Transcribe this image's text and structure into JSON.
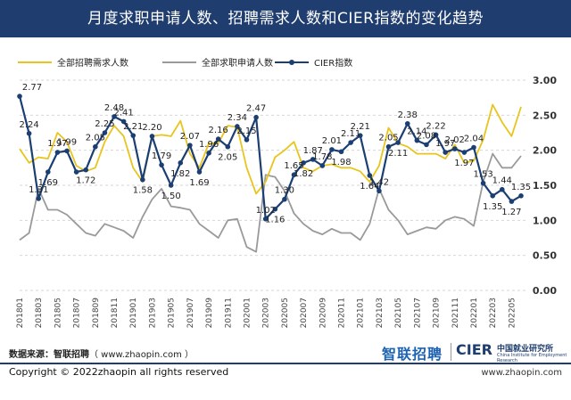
{
  "title": "月度求职申请人数、招聘需求人数和CIER指数的变化趋势",
  "footer": {
    "source_label": "数据来源：智联招聘",
    "source_url": "（ www.zhaopin.com ）",
    "logo_zhaopin": "智联招聘",
    "logo_cier": "CIER",
    "logo_cn": "中国就业研究所",
    "logo_en": "China Institute for Employment Research",
    "copyright": "Copyright ©  2022zhaopin all rights reserved",
    "website": "www.zhaopin.com"
  },
  "colors": {
    "title_bg": "#1f3d6e",
    "demand": "#e8c51e",
    "applicants": "#9a9a9a",
    "cier": "#1b3f73"
  },
  "chart_data": {
    "type": "line",
    "title": "月度求职申请人数、招聘需求人数和CIER指数的变化趋势",
    "legend": [
      "全部招聘需求人数",
      "全部求职申请人数",
      "CIER指数"
    ],
    "y_ticks": [
      "3.00",
      "2.50",
      "2.00",
      "1.50",
      "1.00",
      "0.50",
      "0.00"
    ],
    "ylim": [
      0,
      3
    ],
    "grid": "horizontal dashed",
    "x_tick_labels": [
      "201801",
      "201803",
      "201805",
      "201807",
      "201809",
      "201811",
      "201901",
      "201903",
      "201905",
      "201907",
      "201909",
      "201911",
      "202001",
      "202003",
      "202005",
      "202007",
      "202009",
      "202011",
      "202101",
      "202103",
      "202105",
      "202107",
      "202109",
      "202111",
      "202201",
      "202203",
      "202205"
    ],
    "categories": [
      "201801",
      "201802",
      "201803",
      "201804",
      "201805",
      "201806",
      "201807",
      "201808",
      "201809",
      "201810",
      "201811",
      "201812",
      "201901",
      "201902",
      "201903",
      "201904",
      "201905",
      "201906",
      "201907",
      "201908",
      "201909",
      "201910",
      "201911",
      "201912",
      "202001",
      "202002",
      "202003",
      "202004",
      "202005",
      "202006",
      "202007",
      "202008",
      "202009",
      "202010",
      "202011",
      "202012",
      "202101",
      "202102",
      "202103",
      "202104",
      "202105",
      "202106",
      "202107",
      "202108",
      "202109",
      "202110",
      "202111",
      "202112",
      "202201",
      "202202",
      "202203",
      "202204",
      "202205",
      "202206"
    ],
    "series": [
      {
        "name": "CIER指数",
        "role": "cier",
        "values": [
          2.77,
          2.24,
          1.31,
          1.69,
          1.97,
          1.99,
          1.69,
          1.72,
          2.05,
          2.25,
          2.48,
          2.41,
          2.21,
          1.58,
          2.2,
          1.79,
          1.5,
          1.82,
          2.07,
          1.69,
          1.96,
          2.16,
          2.05,
          2.34,
          2.15,
          2.47,
          1.02,
          1.16,
          1.3,
          1.65,
          1.82,
          1.87,
          1.78,
          2.01,
          1.98,
          2.11,
          2.21,
          1.64,
          1.42,
          2.05,
          2.11,
          2.38,
          2.14,
          2.08,
          2.22,
          1.97,
          2.02,
          1.97,
          2.04,
          1.53,
          1.35,
          1.44,
          1.27,
          1.35
        ],
        "labels": [
          "2.77",
          "2.24",
          "1.31",
          "1.69",
          "1.97",
          "1.99",
          "",
          "1.72",
          "2.05",
          "2.25",
          "2.48",
          "2.41",
          "2.21",
          "1.58",
          "2.20",
          "1.79",
          "1.50",
          "1.82",
          "2.07",
          "1.69",
          "1.96",
          "2.16",
          "2.05",
          "2.34",
          "2.15",
          "2.47",
          "1.02",
          "1.16",
          "1.30",
          "1.65",
          "1.82",
          "1.87",
          "1.78",
          "2.01",
          "1.98",
          "2.11",
          "2.21",
          "1.64",
          "1.42",
          "2.05",
          "2.11",
          "2.38",
          "2.14",
          "2.08",
          "2.22",
          "1.97",
          "2.02",
          "1.97",
          "2.04",
          "1.53",
          "1.35",
          "1.44",
          "1.27",
          "1.35"
        ]
      },
      {
        "name": "全部招聘需求人数",
        "role": "demand",
        "values": [
          2.02,
          1.82,
          1.9,
          1.88,
          2.25,
          2.12,
          1.78,
          1.7,
          1.75,
          2.12,
          2.35,
          2.2,
          1.75,
          1.55,
          2.2,
          2.22,
          2.2,
          2.42,
          1.95,
          1.75,
          2.1,
          2.1,
          2.35,
          2.33,
          1.75,
          1.38,
          1.55,
          1.9,
          2.0,
          2.12,
          1.75,
          1.7,
          1.78,
          1.8,
          1.75,
          1.75,
          1.7,
          1.55,
          1.78,
          2.32,
          2.1,
          2.05,
          1.95,
          1.95,
          1.95,
          1.88,
          2.08,
          1.82,
          1.85,
          2.15,
          2.65,
          2.4,
          2.2,
          2.62
        ]
      },
      {
        "name": "全部求职申请人数",
        "role": "applicants",
        "values": [
          0.72,
          0.82,
          1.45,
          1.15,
          1.15,
          1.08,
          0.95,
          0.82,
          0.78,
          0.95,
          0.9,
          0.85,
          0.75,
          1.05,
          1.3,
          1.45,
          1.2,
          1.18,
          1.15,
          0.95,
          0.85,
          0.75,
          1.0,
          1.02,
          0.62,
          0.55,
          1.65,
          1.62,
          1.42,
          1.1,
          0.95,
          0.85,
          0.8,
          0.88,
          0.82,
          0.82,
          0.72,
          0.95,
          1.45,
          1.15,
          1.0,
          0.8,
          0.85,
          0.9,
          0.88,
          1.0,
          1.05,
          1.02,
          0.92,
          1.55,
          1.95,
          1.75,
          1.75,
          1.92
        ]
      }
    ]
  }
}
